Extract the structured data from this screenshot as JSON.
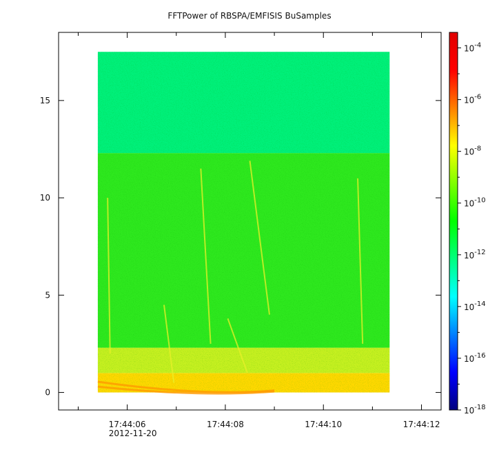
{
  "chart_data": {
    "type": "heatmap",
    "title": "FFTPower of RBSPA/EMFISIS  BuSamples",
    "xlabel": "",
    "ylabel": "",
    "x_ticks": [
      {
        "value": 6,
        "label": "17:44:06"
      },
      {
        "value": 8,
        "label": "17:44:08"
      },
      {
        "value": 10,
        "label": "17:44:10"
      },
      {
        "value": 12,
        "label": "17:44:12"
      }
    ],
    "x_minor_ticks": [
      5,
      7,
      9,
      11
    ],
    "x_date_label": "2012-11-20",
    "xlim": [
      4.6,
      12.4
    ],
    "ylim": [
      -0.9,
      18.5
    ],
    "y_ticks": [
      0,
      5,
      10,
      15
    ],
    "data_x_range": [
      5.4,
      11.35
    ],
    "data_y_range": [
      0,
      17.5
    ],
    "colorbar": {
      "scale": "log",
      "range_exp": [
        -18,
        -3.4
      ],
      "tick_exps": [
        -4,
        -6,
        -8,
        -10,
        -12,
        -14,
        -16,
        -18
      ],
      "colormap": [
        "#00007f",
        "#0000ff",
        "#007fff",
        "#00ffff",
        "#00ff7f",
        "#00ff00",
        "#7fff00",
        "#ffff00",
        "#ff7f00",
        "#ff0000",
        "#e00000"
      ]
    },
    "bands": [
      {
        "y": [
          0,
          1.0
        ],
        "level_exp": -8.2,
        "color": "#ffd800"
      },
      {
        "y": [
          1.0,
          2.3
        ],
        "level_exp": -9.0,
        "color": "#c6f020"
      },
      {
        "y": [
          2.3,
          12.3
        ],
        "level_exp": -10.4,
        "color": "#2ee81e"
      },
      {
        "y": [
          12.3,
          17.5
        ],
        "level_exp": -11.6,
        "color": "#00f07a"
      }
    ],
    "streaks": [
      {
        "x": [
          6.75,
          6.95
        ],
        "y": [
          0.5,
          4.5
        ]
      },
      {
        "x": [
          7.5,
          7.7
        ],
        "y": [
          2.5,
          11.5
        ]
      },
      {
        "x": [
          8.05,
          8.45
        ],
        "y": [
          1.0,
          3.8
        ]
      },
      {
        "x": [
          8.5,
          8.9
        ],
        "y": [
          4.0,
          11.9
        ]
      },
      {
        "x": [
          10.7,
          10.8
        ],
        "y": [
          2.5,
          11.0
        ]
      },
      {
        "x": [
          5.6,
          5.65
        ],
        "y": [
          2.0,
          10.0
        ]
      }
    ]
  }
}
